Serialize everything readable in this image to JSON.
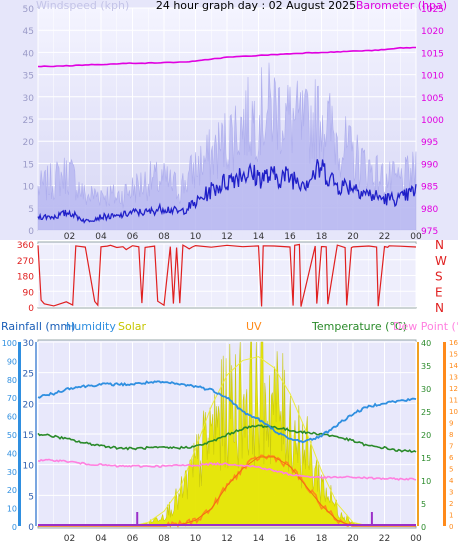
{
  "title": "24 hour graph day : 02 August 2025",
  "colors": {
    "panel_bg": "#dcdcf6",
    "plot_bg": "#e8e8fb",
    "grid": "#ffffff",
    "wind_gust": "#bbbbf2",
    "wind_avg": "#2020c8",
    "barometer": "#e000e0",
    "direction": "#e02020",
    "humidity": "#2f8fe0",
    "temperature": "#2a8a2a",
    "dewpoint": "#ff80e0",
    "solar": "#e6e600",
    "solar_edge": "#c8c800",
    "uv": "#ff8a1a",
    "rain": "#9b30c8",
    "left_axis_label": "#4f7fbf",
    "axis_ticks": "#555555"
  },
  "chart_data": [
    {
      "type": "line",
      "name": "wind-barometer",
      "title": "24 hour graph day : 02 August 2025",
      "left_label": "Windspeed (kph)",
      "right_label": "Barometer (hpa)",
      "x_ticks": [
        "02",
        "04",
        "06",
        "08",
        "10",
        "12",
        "14",
        "16",
        "18",
        "20",
        "22",
        "00"
      ],
      "y_left_ticks": [
        "0",
        "5",
        "10",
        "15",
        "20",
        "25",
        "30",
        "35",
        "40",
        "45",
        "50"
      ],
      "y_left_range": [
        0,
        50
      ],
      "y_right_ticks": [
        "975",
        "980",
        "985",
        "990",
        "995",
        "1000",
        "1005",
        "1010",
        "1015",
        "1020",
        "1025"
      ],
      "y_right_range": [
        975,
        1025
      ],
      "x": [
        0,
        1,
        2,
        3,
        4,
        5,
        6,
        7,
        8,
        9,
        10,
        11,
        12,
        13,
        14,
        15,
        16,
        17,
        18,
        19,
        20,
        21,
        22,
        23,
        24
      ],
      "series": [
        {
          "name": "Windspeed (kph)",
          "values": [
            3,
            3,
            4,
            2,
            3,
            3,
            4,
            4,
            5,
            4,
            6,
            9,
            11,
            13,
            12,
            12,
            12,
            11,
            14,
            10,
            10,
            8,
            7,
            7,
            9
          ]
        },
        {
          "name": "Gust",
          "values": [
            10,
            12,
            14,
            8,
            9,
            8,
            10,
            12,
            12,
            10,
            15,
            18,
            22,
            26,
            28,
            30,
            27,
            25,
            28,
            22,
            18,
            15,
            12,
            12,
            14
          ]
        },
        {
          "name": "Barometer (hpa)",
          "values": [
            1011.8,
            1011.9,
            1012.0,
            1012.2,
            1012.3,
            1012.4,
            1012.6,
            1012.6,
            1012.7,
            1012.8,
            1013.0,
            1013.5,
            1013.9,
            1014.1,
            1014.3,
            1014.5,
            1014.7,
            1014.9,
            1015.0,
            1015.1,
            1015.3,
            1015.4,
            1015.6,
            1016.0,
            1016.1
          ]
        }
      ]
    },
    {
      "type": "line",
      "name": "wind-direction",
      "y_ticks": [
        "360",
        "270",
        "180",
        "90",
        "0"
      ],
      "y_range": [
        0,
        360
      ],
      "compass": [
        "N",
        "W",
        "S",
        "E",
        "N"
      ],
      "x_ticks": [
        "02",
        "04",
        "06",
        "08",
        "10",
        "12",
        "14",
        "16",
        "18",
        "20",
        "22",
        "00"
      ],
      "x": [
        0,
        0.2,
        0.4,
        1.0,
        1.8,
        2.2,
        2.4,
        2.6,
        3.0,
        3.6,
        3.8,
        4.0,
        4.4,
        4.6,
        5.0,
        5.4,
        5.6,
        6.0,
        6.4,
        6.6,
        6.8,
        7.4,
        7.6,
        8.0,
        8.4,
        8.6,
        8.8,
        9.0,
        9.2,
        9.4,
        9.6,
        9.8,
        10,
        11,
        12,
        13,
        14,
        14.2,
        14.3,
        15,
        16,
        16.2,
        16.3,
        16.6,
        16.7,
        17.6,
        17.7,
        18,
        18.3,
        18.4,
        19,
        19.5,
        19.6,
        19.9,
        20,
        21,
        21.5,
        21.6,
        22,
        22.2,
        22.3,
        23,
        24
      ],
      "series": [
        {
          "name": "Direction",
          "values": [
            350,
            40,
            20,
            10,
            30,
            10,
            350,
            350,
            340,
            30,
            10,
            340,
            345,
            350,
            340,
            345,
            330,
            350,
            345,
            20,
            340,
            350,
            30,
            10,
            345,
            20,
            340,
            20,
            350,
            345,
            330,
            345,
            350,
            340,
            350,
            345,
            350,
            5,
            350,
            345,
            345,
            10,
            350,
            355,
            5,
            350,
            20,
            345,
            340,
            20,
            350,
            340,
            10,
            340,
            345,
            350,
            340,
            5,
            345,
            345,
            350,
            345,
            340
          ]
        }
      ]
    },
    {
      "type": "line",
      "name": "rain-humidity-solar-uv-temperature",
      "legend": [
        "Rainfall (mm)",
        "Humidity",
        "Solar",
        "UV",
        "Temperature (°C)",
        "Dew Point (°C)"
      ],
      "x_ticks": [
        "02",
        "04",
        "06",
        "08",
        "10",
        "12",
        "14",
        "16",
        "18",
        "20",
        "22",
        "00"
      ],
      "y_rain_ticks": [
        "0",
        "5",
        "10",
        "15",
        "20",
        "25",
        "30"
      ],
      "y_rain_range": [
        0,
        30
      ],
      "y_humidity_ticks": [
        "0",
        "10",
        "20",
        "30",
        "40",
        "50",
        "60",
        "70",
        "80",
        "90",
        "100"
      ],
      "y_humidity_range": [
        0,
        100
      ],
      "y_temp_ticks": [
        "0",
        "5",
        "10",
        "15",
        "20",
        "25",
        "30",
        "35",
        "40"
      ],
      "y_temp_range": [
        0,
        40
      ],
      "y_uv_ticks": [
        "0",
        "1",
        "2",
        "3",
        "4",
        "5",
        "6",
        "7",
        "8",
        "9",
        "10",
        "11",
        "12",
        "13",
        "14",
        "15",
        "16"
      ],
      "y_uv_range": [
        0,
        16
      ],
      "x": [
        0,
        1,
        2,
        3,
        4,
        5,
        6,
        7,
        8,
        9,
        10,
        11,
        12,
        13,
        14,
        15,
        16,
        17,
        18,
        19,
        20,
        21,
        22,
        23,
        24
      ],
      "series": [
        {
          "name": "Humidity",
          "values": [
            70,
            72,
            75,
            76,
            77,
            77,
            77,
            78,
            78,
            77,
            76,
            74,
            70,
            62,
            58,
            52,
            47,
            46,
            49,
            55,
            61,
            65,
            67,
            68,
            69
          ]
        },
        {
          "name": "Temperature (°C)",
          "values": [
            20.0,
            19.5,
            18.8,
            18.0,
            17.5,
            17.0,
            16.8,
            17.0,
            17.0,
            17.0,
            17.3,
            18.3,
            19.8,
            21.2,
            21.8,
            21.5,
            20.8,
            20.3,
            20.0,
            19.4,
            18.5,
            17.4,
            17.0,
            16.3,
            16.3
          ]
        },
        {
          "name": "Dew Point (°C)",
          "values": [
            14.2,
            14.3,
            14.0,
            13.5,
            13.3,
            13.0,
            13.0,
            13.0,
            13.0,
            13.2,
            13.2,
            13.5,
            13.5,
            13.2,
            12.8,
            12.0,
            11.2,
            10.8,
            10.5,
            10.6,
            10.6,
            10.4,
            10.3,
            10.2,
            10.2
          ]
        },
        {
          "name": "UV",
          "values": [
            0,
            0,
            0,
            0,
            0,
            0,
            0,
            0,
            0,
            0.1,
            0.5,
            1.5,
            3.5,
            5.0,
            6.0,
            6.0,
            5.2,
            3.5,
            1.8,
            0.5,
            0,
            0,
            0,
            0,
            0
          ]
        },
        {
          "name": "Solar",
          "values": [
            0,
            0,
            0,
            0,
            0,
            0,
            0,
            20,
            80,
            200,
            420,
            650,
            820,
            900,
            920,
            860,
            720,
            520,
            300,
            120,
            20,
            0,
            0,
            0,
            0
          ]
        },
        {
          "name": "Rainfall (mm)",
          "values": [
            0,
            0,
            0,
            0,
            0,
            0,
            0,
            0,
            0,
            0,
            0,
            0,
            0,
            0,
            0,
            0,
            0,
            0,
            0,
            0,
            0,
            0,
            0,
            0,
            0
          ]
        }
      ],
      "rain_markers_x": [
        6.3,
        21.2
      ]
    }
  ]
}
